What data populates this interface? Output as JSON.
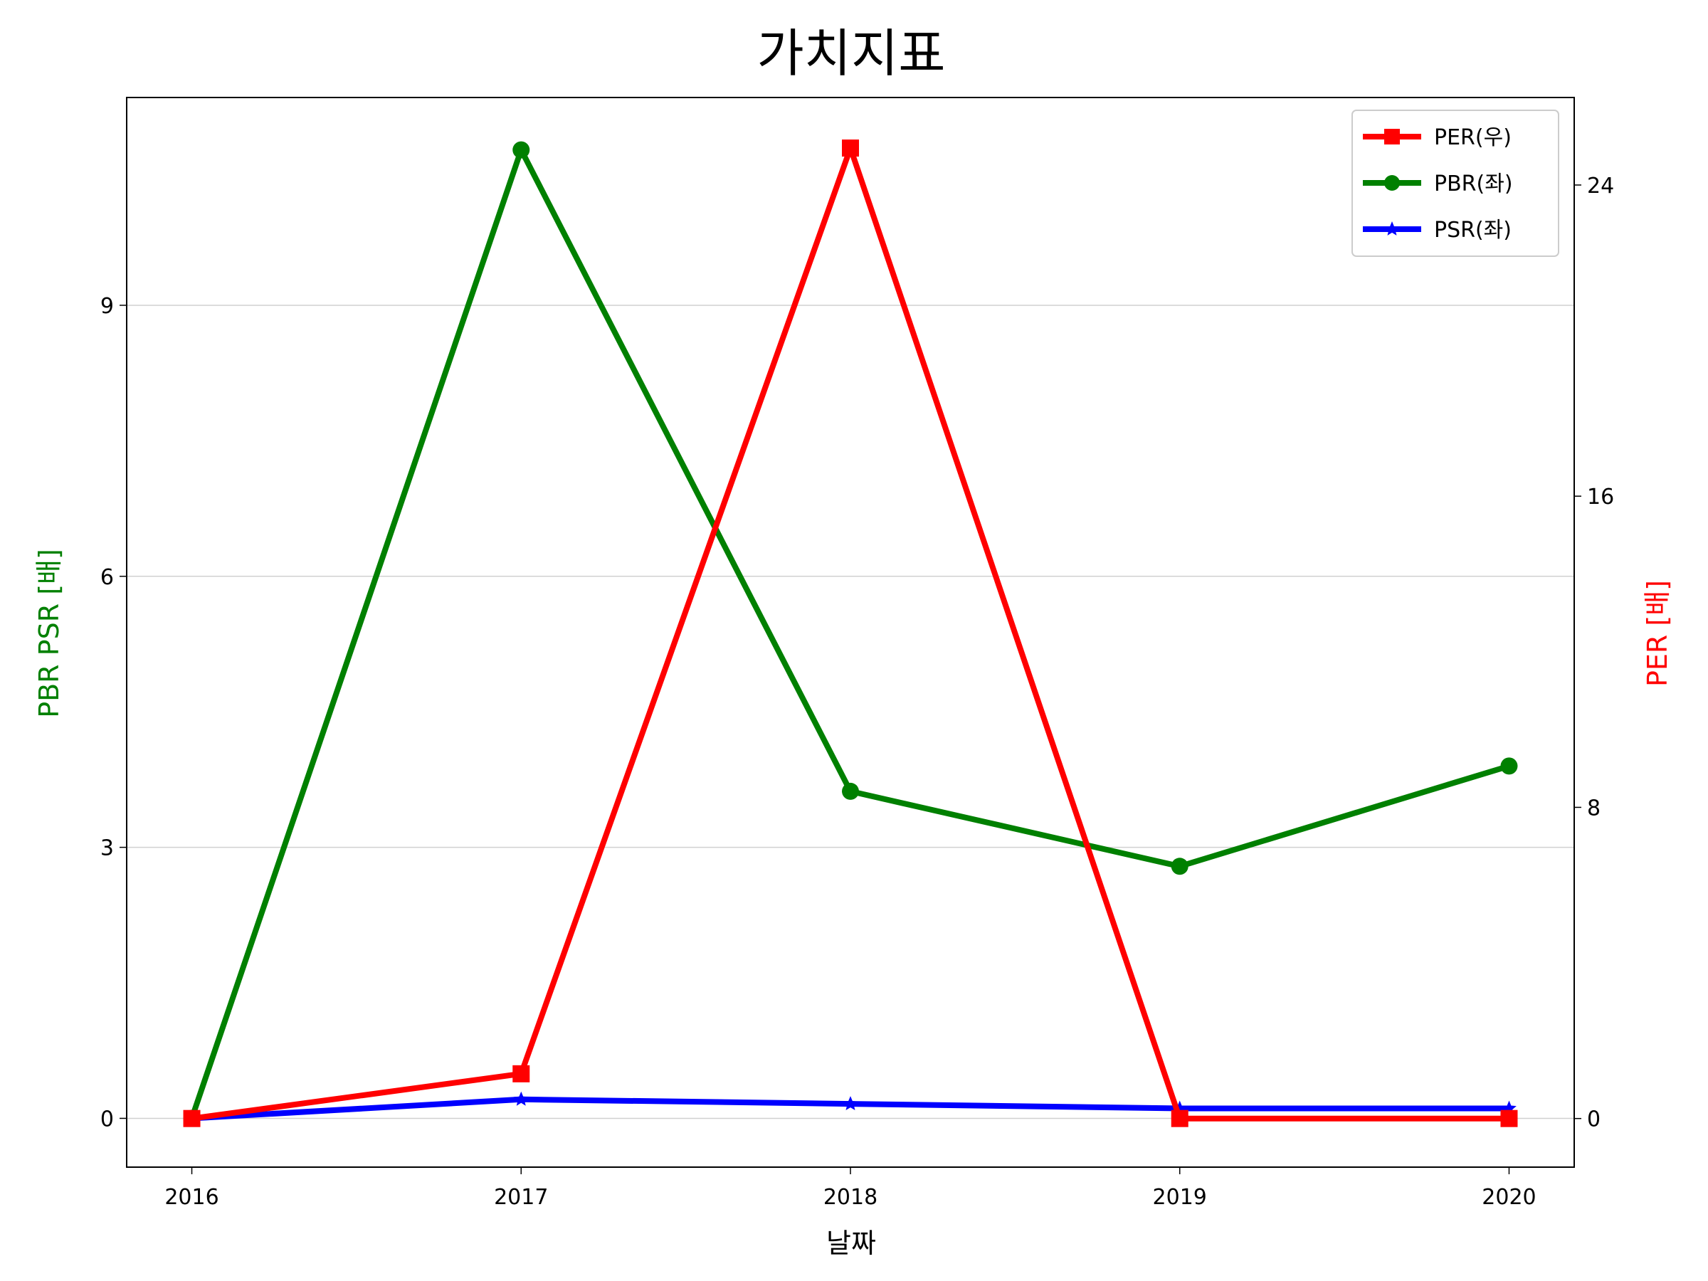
{
  "chart_data": {
    "type": "line",
    "title": "가치지표",
    "xlabel": "날짜",
    "ylabel_left": "PBR PSR [배]",
    "ylabel_right": "PER [배]",
    "categories": [
      "2016",
      "2017",
      "2018",
      "2019",
      "2020"
    ],
    "y_left_ticks": [
      "0",
      "3",
      "6",
      "9"
    ],
    "y_right_ticks": [
      "0",
      "8",
      "16",
      "24"
    ],
    "ylim_left": [
      -0.54,
      11.3
    ],
    "ylim_right": [
      -1.25,
      26.25
    ],
    "grid": "horizontal, left axis",
    "legend_position": "top-right",
    "series": [
      {
        "name": "PER(우)",
        "axis": "right",
        "color": "#ff0000",
        "marker": "square",
        "values": [
          0,
          1.15,
          24.95,
          0,
          0
        ]
      },
      {
        "name": "PBR(좌)",
        "axis": "left",
        "color": "#008000",
        "marker": "circle",
        "values": [
          0,
          10.72,
          3.62,
          2.79,
          3.9
        ]
      },
      {
        "name": "PSR(좌)",
        "axis": "left",
        "color": "#0000ff",
        "marker": "star",
        "values": [
          0,
          0.21,
          0.16,
          0.11,
          0.11
        ]
      }
    ],
    "ylabel_left_color": "#008000",
    "ylabel_right_color": "#ff0000"
  }
}
